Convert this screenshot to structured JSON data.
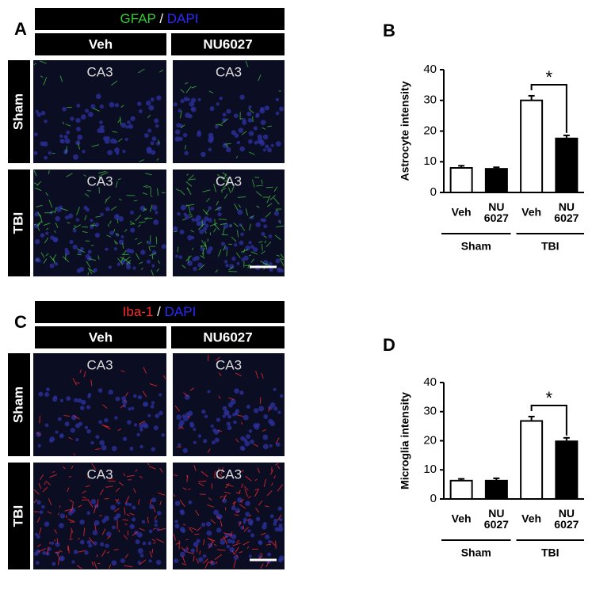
{
  "panels": [
    {
      "label": "A",
      "stain": "GFAP",
      "separator": "/",
      "counterstain": "DAPI",
      "columns": [
        "Veh",
        "NU6027"
      ],
      "rows": [
        "Sham",
        "TBI"
      ],
      "region": "CA3"
    },
    {
      "label": "C",
      "stain": "Iba-1",
      "separator": "/",
      "counterstain": "DAPI",
      "columns": [
        "Veh",
        "NU6027"
      ],
      "rows": [
        "Sham",
        "TBI"
      ],
      "region": "CA3"
    }
  ],
  "chart_data": [
    {
      "type": "bar",
      "label": "B",
      "ylabel": "Astrocyte intensity",
      "categories": [
        "Veh",
        "NU 6027",
        "Veh",
        "NU 6027"
      ],
      "groups": [
        "Sham",
        "TBI"
      ],
      "values": [
        8,
        7.7,
        30,
        17.6
      ],
      "errors": [
        0.7,
        0.5,
        1.5,
        1
      ],
      "colors": [
        "#ffffff",
        "#000000",
        "#ffffff",
        "#000000"
      ],
      "annotation": "*",
      "ylim": [
        0,
        40
      ],
      "yticks": [
        0,
        10,
        20,
        30,
        40
      ]
    },
    {
      "type": "bar",
      "label": "D",
      "ylabel": "Microglia intensity",
      "categories": [
        "Veh",
        "NU 6027",
        "Veh",
        "NU 6027"
      ],
      "groups": [
        "Sham",
        "TBI"
      ],
      "values": [
        6.3,
        6.3,
        26.8,
        19.8
      ],
      "errors": [
        0.6,
        0.8,
        1.5,
        1.2
      ],
      "colors": [
        "#ffffff",
        "#000000",
        "#ffffff",
        "#000000"
      ],
      "annotation": "*",
      "ylim": [
        0,
        40
      ],
      "yticks": [
        0,
        10,
        20,
        30,
        40
      ]
    }
  ]
}
